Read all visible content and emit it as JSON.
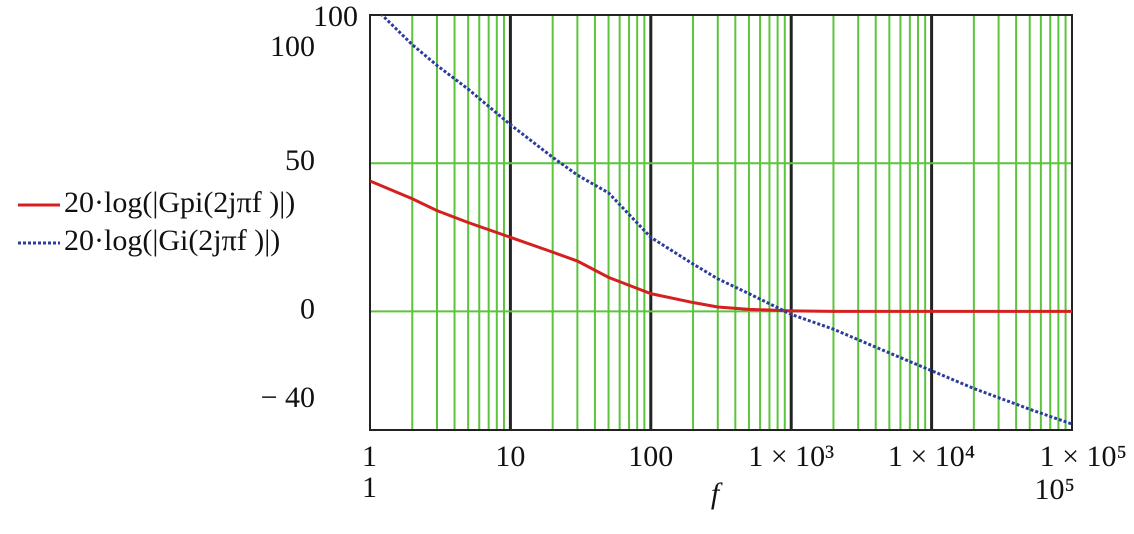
{
  "chart_data": {
    "type": "line",
    "x_label": "f",
    "log_x": true,
    "x": [
      1,
      2,
      3,
      5,
      10,
      20,
      30,
      50,
      100,
      200,
      300,
      500,
      1000,
      2000,
      5000,
      10000,
      20000,
      50000,
      100000
    ],
    "series": [
      {
        "name": "20·log(|Gpi(2jπf )|)",
        "color": "#d42020",
        "dash": "solid",
        "values": [
          44,
          38,
          34,
          30,
          25,
          20,
          17,
          11.5,
          6,
          3,
          1.5,
          0.7,
          0.2,
          0,
          0,
          0,
          0,
          0,
          0
        ]
      },
      {
        "name": "20·log(|Gi(2jπf )|)",
        "color": "#2a3d9e",
        "dash": "dotted",
        "values": [
          104,
          90,
          83,
          75,
          63,
          52,
          46,
          40,
          25,
          16,
          11,
          6,
          -1,
          -6,
          -14,
          -20,
          -26,
          -33,
          -38
        ]
      }
    ],
    "xlim": [
      1,
      100000
    ],
    "xlim_labels": [
      "1",
      "10⁵"
    ],
    "xticks": [
      1,
      10,
      100,
      {
        "value": 1000,
        "label": "1 × 10³"
      },
      {
        "value": 10000,
        "label": "1 × 10⁴"
      },
      {
        "value": 100000,
        "label": "1 × 10⁵"
      }
    ],
    "ylim": [
      -40,
      100
    ],
    "yticks": [
      {
        "value": -40,
        "label": "− 40"
      },
      0,
      50,
      100
    ],
    "grid": true,
    "grid_color": "#5cc43c",
    "major_grid_color": "#222222"
  }
}
